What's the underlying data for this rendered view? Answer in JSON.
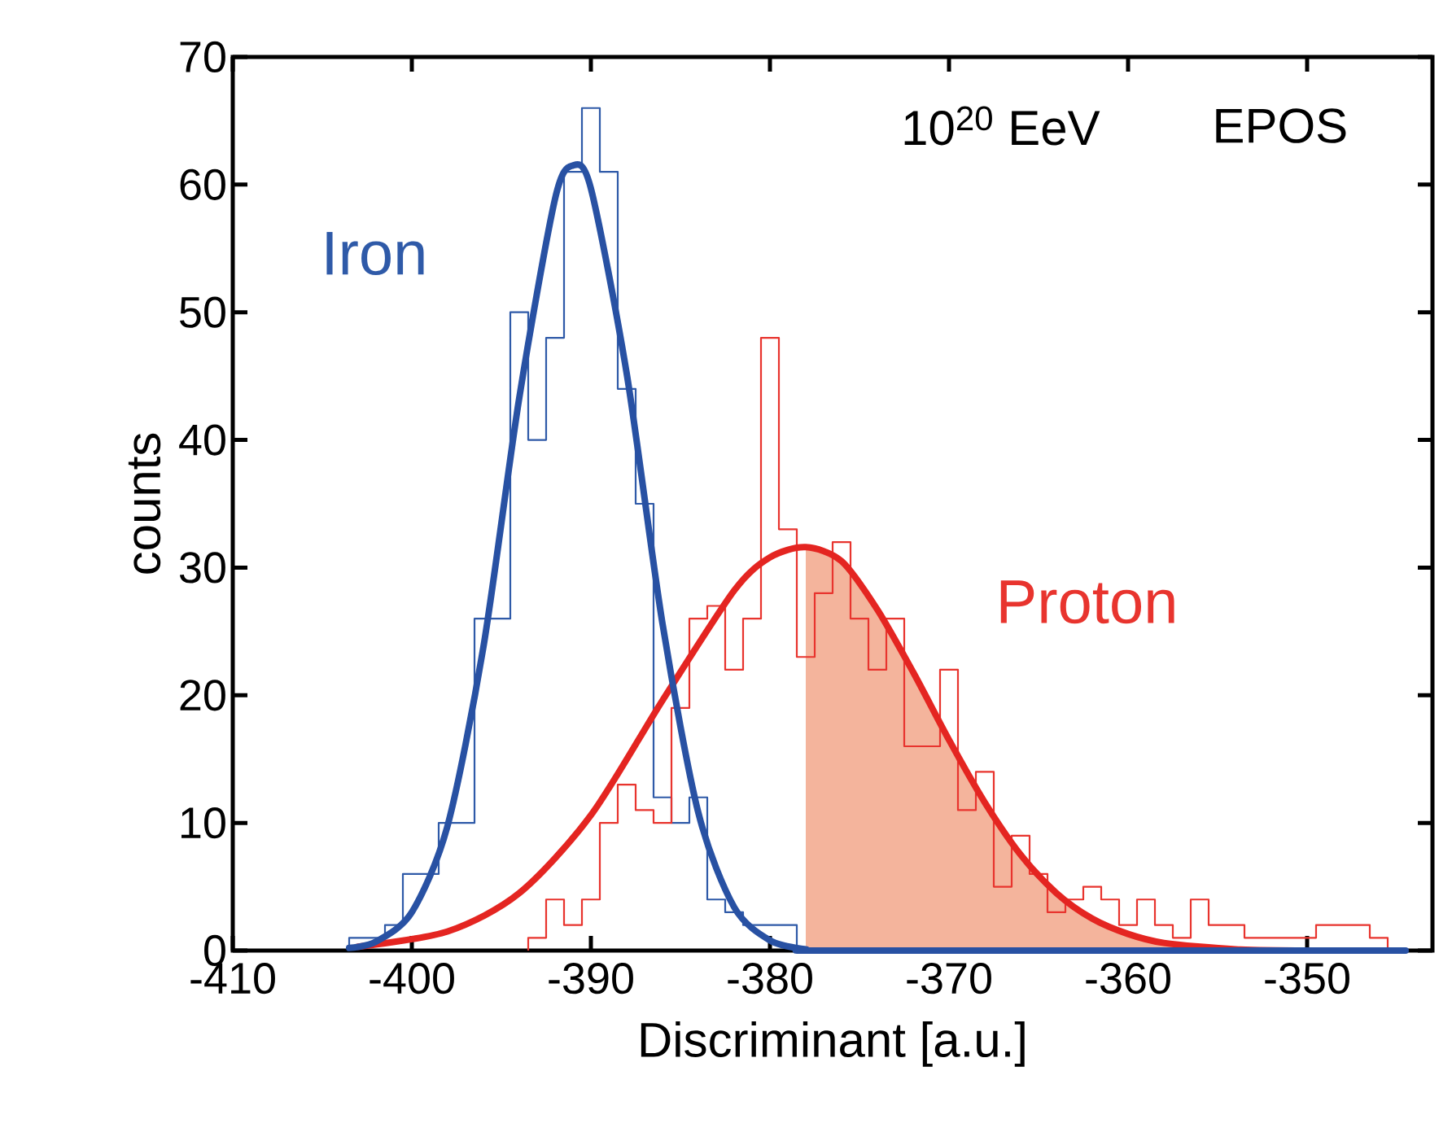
{
  "chart_data": {
    "type": "histogram",
    "xlabel": "Discriminant [a.u.]",
    "ylabel": "counts",
    "annotations": [
      "10$^{20}$ EeV",
      "EPOS"
    ],
    "xlim": [
      -410,
      -343
    ],
    "ylim": [
      0,
      70
    ],
    "xticks": [
      -410,
      -400,
      -390,
      -380,
      -370,
      -360,
      -350
    ],
    "yticks": [
      0,
      10,
      20,
      30,
      40,
      50,
      60,
      70
    ],
    "series": [
      {
        "type": "area",
        "color": "#f4b49c",
        "x": [
          -378,
          -376,
          -374,
          -372,
          -370,
          -368,
          -366,
          -364,
          -362,
          -360,
          -358,
          -354,
          -350
        ],
        "values": [
          31.6,
          30.5,
          26.7,
          21.8,
          16.5,
          11.6,
          7.5,
          4.5,
          2.5,
          1.3,
          0.6,
          0.1,
          0
        ]
      },
      {
        "name": "Iron",
        "color": "#2f5aa8",
        "bins": [
          -403.5,
          -402.5,
          -401.5,
          -400.5,
          -399.5,
          -398.5,
          -397.5,
          -396.5,
          -395.5,
          -394.5,
          -393.5,
          -392.5,
          -391.5,
          -390.5,
          -389.5,
          -388.5,
          -387.5,
          -386.5,
          -385.5,
          -384.5,
          -383.5,
          -382.5,
          -381.5,
          -380.5,
          -379.5,
          -378.5
        ],
        "values": [
          1,
          1,
          2,
          6,
          6,
          10,
          10,
          26,
          26,
          50,
          40,
          48,
          61,
          66,
          61,
          44,
          35,
          12,
          10,
          12,
          4,
          3,
          2,
          2,
          2
        ]
      },
      {
        "name": "Proton",
        "color": "#e8342e",
        "bins": [
          -393.5,
          -392.5,
          -391.5,
          -390.5,
          -389.5,
          -388.5,
          -387.5,
          -386.5,
          -385.5,
          -384.5,
          -383.5,
          -382.5,
          -381.5,
          -380.5,
          -379.5,
          -378.5,
          -377.5,
          -376.5,
          -375.5,
          -374.5,
          -373.5,
          -372.5,
          -371.5,
          -370.5,
          -369.5,
          -368.5,
          -367.5,
          -366.5,
          -365.5,
          -364.5,
          -363.5,
          -362.5,
          -361.5,
          -360.5,
          -359.5,
          -358.5,
          -357.5,
          -356.5,
          -355.5,
          -354.5,
          -353.5,
          -352.5,
          -351.5,
          -350.5,
          -349.5,
          -348.5,
          -347.5,
          -346.5,
          -345.5
        ],
        "values": [
          1,
          4,
          2,
          4,
          10,
          13,
          11,
          10,
          19,
          26,
          27,
          22,
          26,
          48,
          33,
          23,
          28,
          32,
          26,
          22,
          26,
          16,
          16,
          22,
          11,
          14,
          5,
          9,
          6,
          3,
          4,
          5,
          4,
          2,
          4,
          2,
          1,
          4,
          2,
          2,
          1,
          1,
          1,
          1,
          2,
          2,
          2,
          1
        ]
      },
      {
        "type": "line",
        "color": "#e42521",
        "x": [
          -403,
          -398,
          -394,
          -390,
          -386,
          -382,
          -380,
          -378,
          -376,
          -374,
          -372,
          -370,
          -368,
          -366,
          -364,
          -362,
          -360,
          -358,
          -354,
          -350
        ],
        "values": [
          0.3,
          1.5,
          4.5,
          10.6,
          19.6,
          28.2,
          30.8,
          31.6,
          30.5,
          26.7,
          21.8,
          16.5,
          11.6,
          7.5,
          4.5,
          2.5,
          1.3,
          0.6,
          0.1,
          0
        ]
      },
      {
        "type": "line",
        "color": "#2851a3",
        "x": [
          -403.5,
          -402,
          -400,
          -398,
          -396,
          -394,
          -392,
          -391,
          -390,
          -388,
          -386,
          -384,
          -382,
          -380,
          -378,
          -376,
          -344.5
        ],
        "values": [
          0.2,
          0.7,
          3.0,
          9.8,
          23.8,
          43.3,
          58.9,
          61.5,
          59.7,
          45.2,
          25.6,
          10.8,
          3.4,
          0.8,
          0.1,
          0,
          0
        ]
      }
    ]
  }
}
